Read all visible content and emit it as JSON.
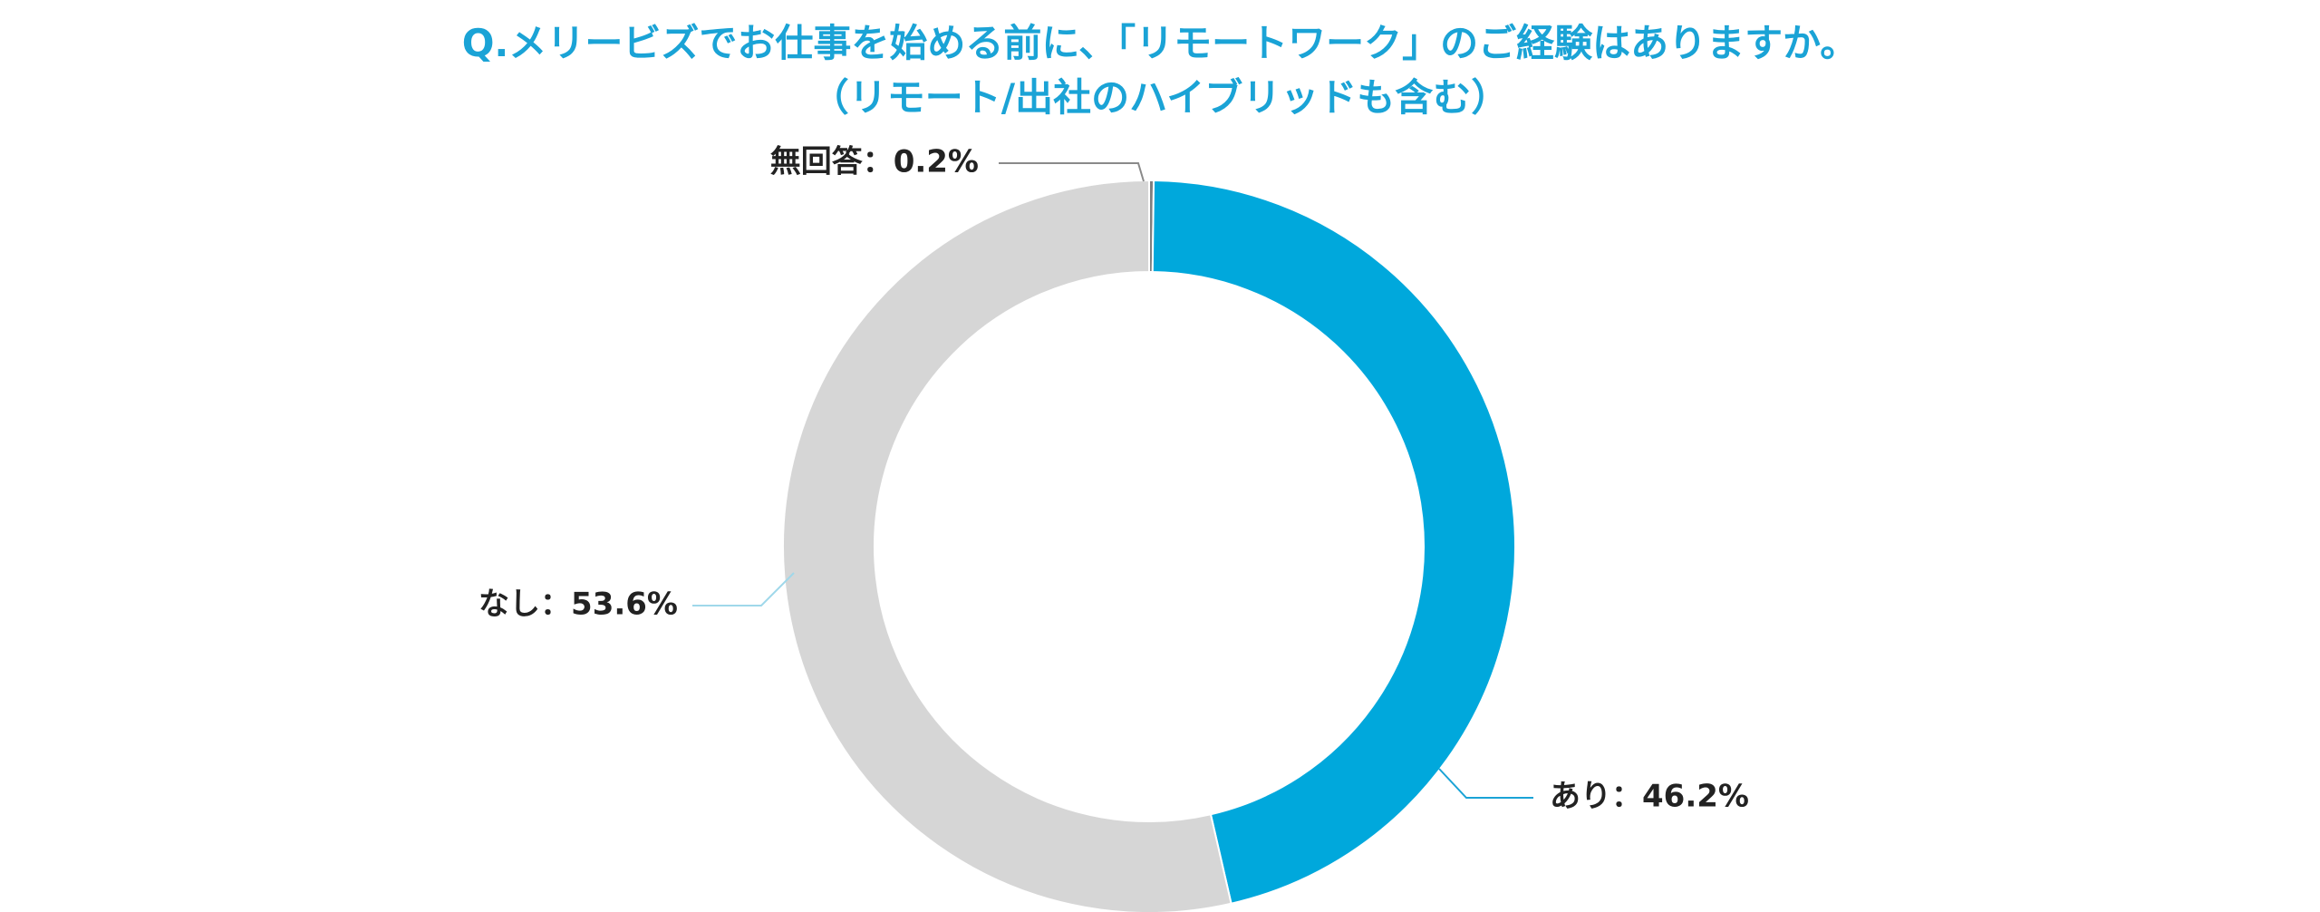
{
  "chart_data": {
    "type": "pie",
    "variant": "donut",
    "title": "Q.メリービズでお仕事を始める前に、「リモートワーク」のご経験はありますか。",
    "subtitle": "（リモート/出社のハイブリッドも含む）",
    "slices": [
      {
        "name": "無回答",
        "value": 0.2,
        "color": "#7f7f7f",
        "label": "無回答：0.2%"
      },
      {
        "name": "あり",
        "value": 46.2,
        "color": "#00a8dc",
        "label": "あり：46.2%"
      },
      {
        "name": "なし",
        "value": 53.6,
        "color": "#d6d6d6",
        "label": "なし：53.6%"
      }
    ],
    "start": "top",
    "direction": "clockwise",
    "unit": "%"
  }
}
